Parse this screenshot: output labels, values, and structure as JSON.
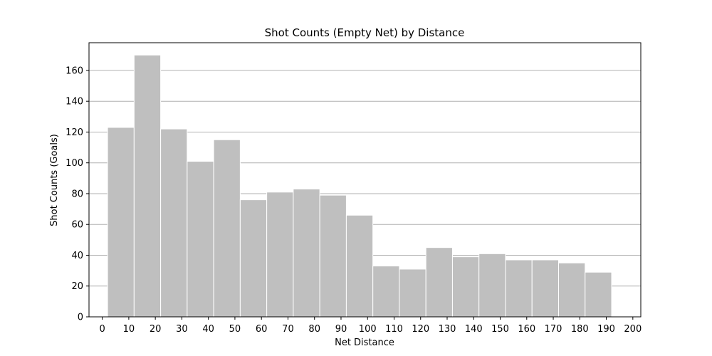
{
  "chart_data": {
    "type": "bar",
    "title": "Shot Counts (Empty Net) by Distance",
    "xlabel": "Net Distance",
    "ylabel": "Shot Counts (Goals)",
    "xlim": [
      -5,
      203
    ],
    "ylim": [
      0,
      178
    ],
    "grid": "horizontal",
    "bar_color": "#bfbfbf",
    "bar_edge_color": "#ffffff",
    "grid_color": "#b0b0b0",
    "x_ticks": [
      0,
      10,
      20,
      30,
      40,
      50,
      60,
      70,
      80,
      90,
      100,
      110,
      120,
      130,
      140,
      150,
      160,
      170,
      180,
      190,
      200
    ],
    "y_ticks": [
      0,
      20,
      40,
      60,
      80,
      100,
      120,
      140,
      160
    ],
    "bins": [
      {
        "start": 2,
        "end": 12,
        "count": 123
      },
      {
        "start": 12,
        "end": 22,
        "count": 170
      },
      {
        "start": 22,
        "end": 32,
        "count": 122
      },
      {
        "start": 32,
        "end": 42,
        "count": 101
      },
      {
        "start": 42,
        "end": 52,
        "count": 115
      },
      {
        "start": 52,
        "end": 62,
        "count": 76
      },
      {
        "start": 62,
        "end": 72,
        "count": 81
      },
      {
        "start": 72,
        "end": 82,
        "count": 83
      },
      {
        "start": 82,
        "end": 92,
        "count": 79
      },
      {
        "start": 92,
        "end": 102,
        "count": 66
      },
      {
        "start": 102,
        "end": 112,
        "count": 33
      },
      {
        "start": 112,
        "end": 122,
        "count": 31
      },
      {
        "start": 122,
        "end": 132,
        "count": 45
      },
      {
        "start": 132,
        "end": 142,
        "count": 39
      },
      {
        "start": 142,
        "end": 152,
        "count": 41
      },
      {
        "start": 152,
        "end": 162,
        "count": 37
      },
      {
        "start": 162,
        "end": 172,
        "count": 37
      },
      {
        "start": 172,
        "end": 182,
        "count": 35
      },
      {
        "start": 182,
        "end": 192,
        "count": 29
      }
    ]
  }
}
